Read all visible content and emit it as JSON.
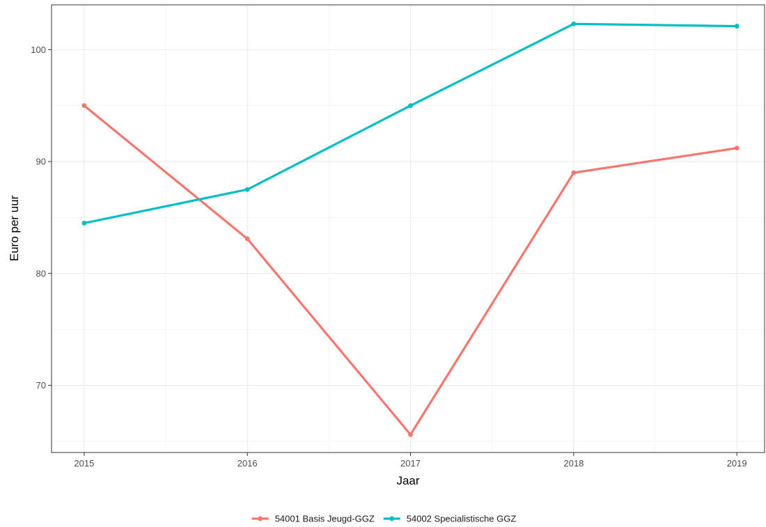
{
  "chart_data": {
    "type": "line",
    "x": [
      2015,
      2016,
      2017,
      2018,
      2019
    ],
    "x_tick_labels": [
      "2015",
      "2016",
      "2017",
      "2018",
      "2019"
    ],
    "xlabel": "Jaar",
    "ylabel": "Euro per uur",
    "xlim": [
      2014.8,
      2019.17
    ],
    "ylim": [
      64.0,
      104.0
    ],
    "y_ticks": [
      70,
      80,
      90,
      100
    ],
    "y_tick_labels": [
      "70",
      "80",
      "90",
      "100"
    ],
    "grid": true,
    "legend_position": "bottom",
    "series": [
      {
        "name": "54001 Basis Jeugd-GGZ",
        "color": "#F8766D",
        "values": [
          95.0,
          83.1,
          65.6,
          89.0,
          91.2
        ]
      },
      {
        "name": "54002 Specialistische GGZ",
        "color": "#00BFC4",
        "values": [
          84.5,
          87.5,
          95.0,
          102.3,
          102.1
        ]
      }
    ]
  }
}
